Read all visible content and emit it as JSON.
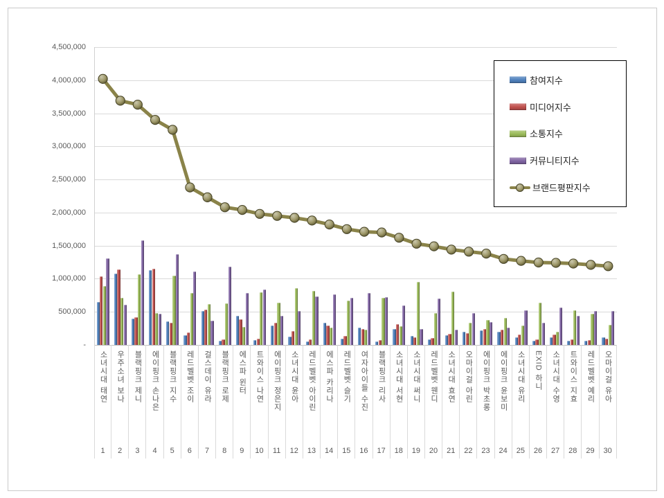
{
  "chart_data": {
    "type": "combo-bar-line",
    "title": "",
    "categories": [
      "소녀시대 태연",
      "우주소녀 보나",
      "블랙핑크 제니",
      "에이핑크 손나은",
      "블랙핑크 지수",
      "레드벨벳 조이",
      "걸스데이 유라",
      "블랙핑크 로제",
      "에스파 윈터",
      "트와이스 나연",
      "에이핑크 정은지",
      "소녀시대 윤아",
      "레드벨벳 아이린",
      "에스파 카리나",
      "레드벨벳 슬기",
      "여자아이들 수진",
      "블랙핑크 리사",
      "소녀시대 서현",
      "소녀시대 써니",
      "레드벨벳 웬디",
      "소녀시대 효연",
      "오마이걸 아린",
      "에이핑크 박초롱",
      "에이핑크 윤보미",
      "소녀시대 유리",
      "EXID 하니",
      "소녀시대 수영",
      "트와이스 지효",
      "레드벨벳 예리",
      "오마이걸 유아"
    ],
    "ranks": [
      1,
      2,
      3,
      4,
      5,
      6,
      7,
      8,
      9,
      10,
      11,
      12,
      13,
      14,
      15,
      16,
      17,
      18,
      19,
      20,
      21,
      22,
      23,
      24,
      25,
      26,
      27,
      28,
      29,
      30
    ],
    "series": [
      {
        "name": "참여지수",
        "type": "bar",
        "color": "#4F81BD",
        "values": [
          650000,
          1080000,
          400000,
          1130000,
          360000,
          150000,
          510000,
          60000,
          440000,
          75000,
          290000,
          130000,
          50000,
          330000,
          90000,
          260000,
          50000,
          240000,
          140000,
          80000,
          150000,
          200000,
          220000,
          200000,
          110000,
          60000,
          120000,
          60000,
          60000,
          110000
        ]
      },
      {
        "name": "미디어지수",
        "type": "bar",
        "color": "#C0504D",
        "values": [
          1040000,
          1140000,
          420000,
          1150000,
          330000,
          190000,
          530000,
          80000,
          390000,
          95000,
          330000,
          210000,
          80000,
          290000,
          140000,
          240000,
          70000,
          310000,
          120000,
          100000,
          170000,
          180000,
          240000,
          230000,
          160000,
          80000,
          160000,
          80000,
          70000,
          90000
        ]
      },
      {
        "name": "소통지수",
        "type": "bar",
        "color": "#9BBB59",
        "values": [
          890000,
          710000,
          1070000,
          480000,
          1050000,
          780000,
          620000,
          630000,
          270000,
          800000,
          640000,
          860000,
          820000,
          260000,
          670000,
          230000,
          710000,
          280000,
          950000,
          480000,
          810000,
          340000,
          380000,
          410000,
          290000,
          640000,
          200000,
          520000,
          470000,
          300000
        ]
      },
      {
        "name": "커뮤니티지수",
        "type": "bar",
        "color": "#8064A2",
        "values": [
          1310000,
          610000,
          1580000,
          470000,
          1370000,
          1110000,
          370000,
          1180000,
          790000,
          840000,
          440000,
          510000,
          730000,
          760000,
          710000,
          780000,
          720000,
          600000,
          240000,
          700000,
          230000,
          480000,
          350000,
          260000,
          520000,
          330000,
          570000,
          440000,
          510000,
          510000
        ]
      },
      {
        "name": "브랜드평판지수",
        "type": "line",
        "color": "#8A8349",
        "values": [
          4020000,
          3690000,
          3630000,
          3400000,
          3250000,
          2380000,
          2230000,
          2080000,
          2040000,
          1980000,
          1950000,
          1920000,
          1880000,
          1820000,
          1750000,
          1710000,
          1700000,
          1620000,
          1530000,
          1490000,
          1440000,
          1410000,
          1380000,
          1300000,
          1270000,
          1245000,
          1240000,
          1230000,
          1210000,
          1190000
        ]
      }
    ],
    "y_axis": {
      "min": 0,
      "max": 4500000,
      "step": 500000,
      "ticks": [
        {
          "label": "-",
          "value": 0
        },
        {
          "label": "500,000",
          "value": 500000
        },
        {
          "label": "1,000,000",
          "value": 1000000
        },
        {
          "label": "1,500,000",
          "value": 1500000
        },
        {
          "label": "2,000,000",
          "value": 2000000
        },
        {
          "label": "2,500,000",
          "value": 2500000
        },
        {
          "label": "3,000,000",
          "value": 3000000
        },
        {
          "label": "3,500,000",
          "value": 3500000
        },
        {
          "label": "4,000,000",
          "value": 4000000
        },
        {
          "label": "4,500,000",
          "value": 4500000
        }
      ]
    },
    "grid": true,
    "legend_position": "top-right"
  }
}
